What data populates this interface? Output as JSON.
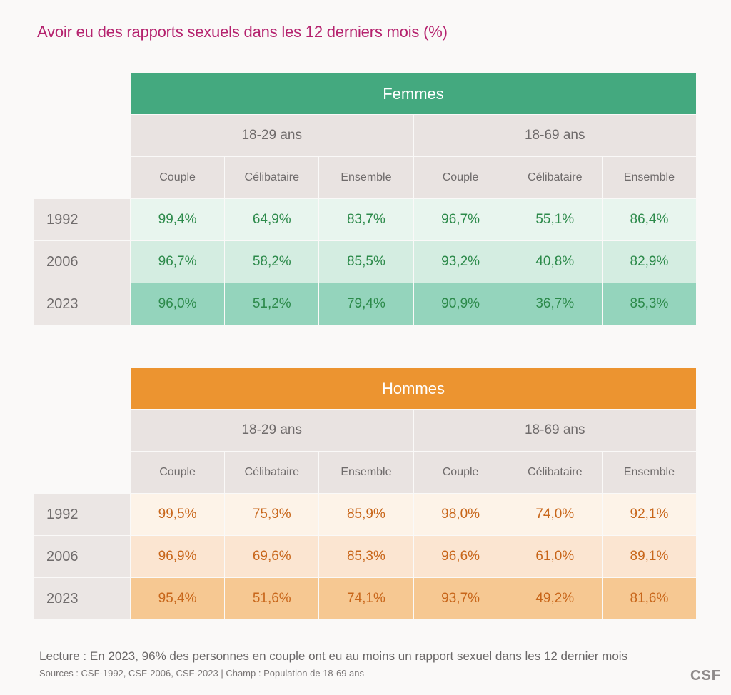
{
  "title": "Avoir eu des rapports sexuels dans les 12 derniers mois (%)",
  "colors": {
    "femmes_banner": "#44a97f",
    "femmes_rows": [
      "#e8f5ee",
      "#d4ede1",
      "#94d4bc"
    ],
    "femmes_text": "#2c8a4a",
    "hommes_banner": "#ec9430",
    "hommes_rows": [
      "#fdf3e8",
      "#fbe5d1",
      "#f6c892"
    ],
    "hommes_text": "#c8661a"
  },
  "chart_data": [
    {
      "type": "table",
      "title": "Femmes",
      "age_groups": [
        "18-29 ans",
        "18-69 ans"
      ],
      "columns": [
        "Couple",
        "Célibataire",
        "Ensemble",
        "Couple",
        "Célibataire",
        "Ensemble"
      ],
      "rows": [
        {
          "year": "1992",
          "values": [
            "99,4%",
            "64,9%",
            "83,7%",
            "96,7%",
            "55,1%",
            "86,4%"
          ]
        },
        {
          "year": "2006",
          "values": [
            "96,7%",
            "58,2%",
            "85,5%",
            "93,2%",
            "40,8%",
            "82,9%"
          ]
        },
        {
          "year": "2023",
          "values": [
            "96,0%",
            "51,2%",
            "79,4%",
            "90,9%",
            "36,7%",
            "85,3%"
          ]
        }
      ]
    },
    {
      "type": "table",
      "title": "Hommes",
      "age_groups": [
        "18-29 ans",
        "18-69 ans"
      ],
      "columns": [
        "Couple",
        "Célibataire",
        "Ensemble",
        "Couple",
        "Célibataire",
        "Ensemble"
      ],
      "rows": [
        {
          "year": "1992",
          "values": [
            "99,5%",
            "75,9%",
            "85,9%",
            "98,0%",
            "74,0%",
            "92,1%"
          ]
        },
        {
          "year": "2006",
          "values": [
            "96,9%",
            "69,6%",
            "85,3%",
            "96,6%",
            "61,0%",
            "89,1%"
          ]
        },
        {
          "year": "2023",
          "values": [
            "95,4%",
            "51,6%",
            "74,1%",
            "93,7%",
            "49,2%",
            "81,6%"
          ]
        }
      ]
    }
  ],
  "footer": {
    "lecture": "Lecture : En 2023, 96%  des personnes en couple ont eu au moins un rapport sexuel dans les 12 dernier mois",
    "sources": "Sources :  CSF-1992, CSF-2006, CSF-2023 | Champ : Population de 18-69 ans",
    "logo": "CSF"
  }
}
